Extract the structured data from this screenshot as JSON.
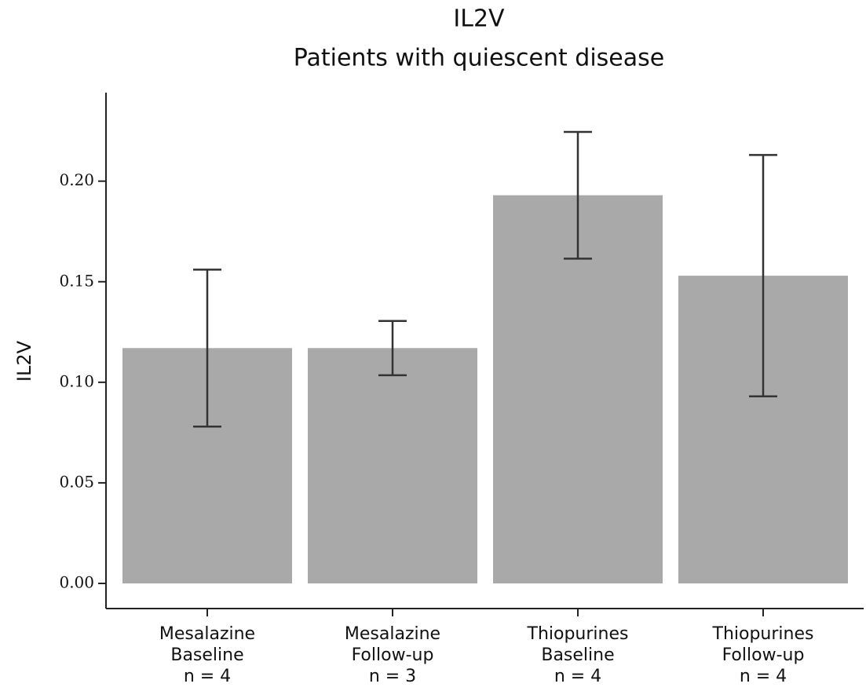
{
  "chart_data": {
    "type": "bar",
    "title": [
      "IL2V",
      "Patients with quiescent disease"
    ],
    "ylabel": "IL2V",
    "categories": [
      [
        "Mesalazine",
        "Baseline",
        "n = 4"
      ],
      [
        "Mesalazine",
        "Follow-up",
        "n = 3"
      ],
      [
        "Thiopurines",
        "Baseline",
        "n = 4"
      ],
      [
        "Thiopurines",
        "Follow-up",
        "n = 4"
      ]
    ],
    "values": [
      0.117,
      0.117,
      0.193,
      0.153
    ],
    "errors": [
      0.039,
      0.0135,
      0.0315,
      0.06
    ],
    "color": "#a9a9a9",
    "ylim": [
      -0.0125,
      0.244
    ],
    "yticks": [
      {
        "value": 0,
        "label": "0.00"
      },
      {
        "value": 0.05,
        "label": "0.05"
      },
      {
        "value": 0.1,
        "label": "0.10"
      },
      {
        "value": 0.15,
        "label": "0.15"
      },
      {
        "value": 0.2,
        "label": "0.20"
      }
    ],
    "grid": false
  }
}
